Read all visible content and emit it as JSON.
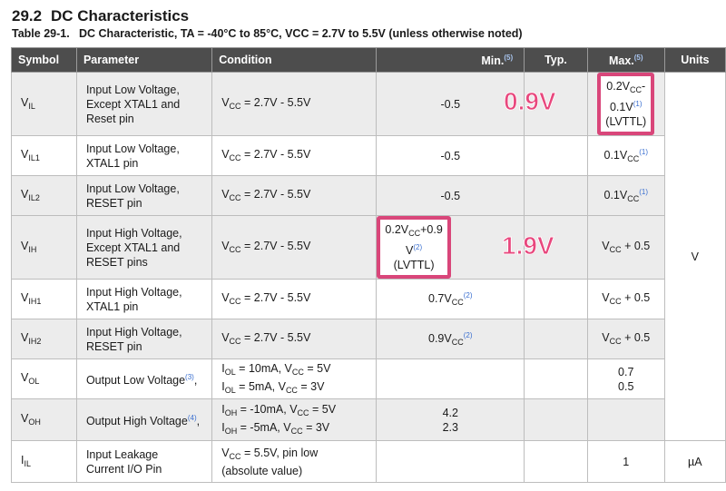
{
  "section": {
    "number": "29.2",
    "title": "DC Characteristics"
  },
  "caption": {
    "table_number": "Table 29-1.",
    "text": "DC Characteristic, TA = -40°C to 85°C, VCC = 2.7V to 5.5V (unless otherwise noted)"
  },
  "headers": {
    "symbol": "Symbol",
    "parameter": "Parameter",
    "condition": "Condition",
    "min": "Min.",
    "min_note": "(5)",
    "typ": "Typ.",
    "max": "Max.",
    "max_note": "(5)",
    "units": "Units"
  },
  "rows": {
    "vil": {
      "sym": "V",
      "sub": "IL",
      "p1": "Input Low Voltage,",
      "p2": "Except XTAL1 and",
      "p3": "Reset pin",
      "cond": "V",
      "cond_sub": "CC",
      "cond_rest": " = 2.7V - 5.5V",
      "min": "-0.5",
      "max1": "0.2V",
      "max1_sub": "CC",
      "max1_tail": "-",
      "max2": "0.1V",
      "max2_note": "(1)",
      "max3": "(LVTTL)"
    },
    "vil1": {
      "sym": "V",
      "sub": "IL1",
      "p1": "Input Low Voltage,",
      "p2": "XTAL1 pin",
      "cond": "V",
      "cond_sub": "CC",
      "cond_rest": " = 2.7V - 5.5V",
      "min": "-0.5",
      "max": "0.1V",
      "max_sub": "CC",
      "max_note": "(1)"
    },
    "vil2": {
      "sym": "V",
      "sub": "IL2",
      "p1": "Input Low Voltage,",
      "p2": "RESET pin",
      "cond": "V",
      "cond_sub": "CC",
      "cond_rest": " = 2.7V - 5.5V",
      "min": "-0.5",
      "max": "0.1V",
      "max_sub": "CC",
      "max_note": "(1)"
    },
    "vih": {
      "sym": "V",
      "sub": "IH",
      "p1": "Input High Voltage,",
      "p2": "Except XTAL1 and",
      "p3": "RESET pins",
      "cond": "V",
      "cond_sub": "CC",
      "cond_rest": " = 2.7V - 5.5V",
      "min1": "0.2V",
      "min1_sub": "CC",
      "min1_tail": "+0.9",
      "min2": "V",
      "min2_note": "(2)",
      "min3": "(LVTTL)",
      "max": "V",
      "max_sub": "CC",
      "max_tail": " + 0.5"
    },
    "vih1": {
      "sym": "V",
      "sub": "IH1",
      "p1": "Input High Voltage,",
      "p2": "XTAL1 pin",
      "cond": "V",
      "cond_sub": "CC",
      "cond_rest": " = 2.7V - 5.5V",
      "min": "0.7V",
      "min_sub": "CC",
      "min_note": "(2)",
      "max": "V",
      "max_sub": "CC",
      "max_tail": " + 0.5"
    },
    "vih2": {
      "sym": "V",
      "sub": "IH2",
      "p1": "Input High Voltage,",
      "p2": "RESET pin",
      "cond": "V",
      "cond_sub": "CC",
      "cond_rest": " = 2.7V - 5.5V",
      "min": "0.9V",
      "min_sub": "CC",
      "min_note": "(2)",
      "max": "V",
      "max_sub": "CC",
      "max_tail": " + 0.5"
    },
    "vol": {
      "sym": "V",
      "sub": "OL",
      "p1": "Output Low Voltage",
      "p1_note": "(3)",
      "p1_tail": ",",
      "c1a": "I",
      "c1a_sub": "OL",
      "c1b": " = 10mA, V",
      "c1b_sub": "CC",
      "c1c": " = 5V",
      "c2a": "I",
      "c2a_sub": "OL",
      "c2b": " = 5mA, V",
      "c2b_sub": "CC",
      "c2c": " = 3V",
      "max1": "0.7",
      "max2": "0.5"
    },
    "voh": {
      "sym": "V",
      "sub": "OH",
      "p1": "Output High Voltage",
      "p1_note": "(4)",
      "p1_tail": ",",
      "c1a": "I",
      "c1a_sub": "OH",
      "c1b": " = -10mA, V",
      "c1b_sub": "CC",
      "c1c": " = 5V",
      "c2a": "I",
      "c2a_sub": "OH",
      "c2b": " = -5mA, V",
      "c2b_sub": "CC",
      "c2c": " = 3V",
      "min1": "4.2",
      "min2": "2.3"
    },
    "iil": {
      "sym": "I",
      "sub": "IL",
      "p1": "Input Leakage",
      "p2": "Current I/O Pin",
      "cond1a": "V",
      "cond1_sub": "CC",
      "cond1b": " = 5.5V, pin low",
      "cond2": "(absolute value)",
      "max": "1",
      "units": "µA"
    }
  },
  "units_v": "V",
  "annotations": {
    "vil_max": "0.9V",
    "vih_min": "1.9V"
  },
  "colors": {
    "header_bg": "#4d4d4d",
    "shade": "#ececec",
    "highlight": "#d9467a",
    "annotation": "#e8477d",
    "footnote": "#3a6fd0"
  }
}
